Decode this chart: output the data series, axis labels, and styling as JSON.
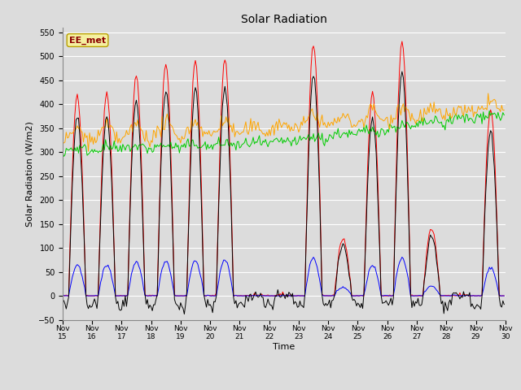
{
  "title": "Solar Radiation",
  "xlabel": "Time",
  "ylabel": "Solar Radiation (W/m2)",
  "ylim": [
    -50,
    560
  ],
  "xlim": [
    0,
    360
  ],
  "annotation_text": "EE_met",
  "annotation_bg": "#f5f0a0",
  "annotation_border": "#b8a000",
  "annotation_fg": "#8b0000",
  "bg_color": "#dcdcdc",
  "plot_bg": "#dcdcdc",
  "grid_color": "white",
  "series_colors": {
    "SW_in": "#ff0000",
    "SW_out": "#0000ff",
    "LW_in": "#00cc00",
    "LW_out": "#ffa500",
    "Rnet": "#000000"
  },
  "x_tick_labels": [
    "Nov 15",
    "Nov 16",
    "Nov 17",
    "Nov 18",
    "Nov 19",
    "Nov 20",
    "Nov 21",
    "Nov 22",
    "Nov 23",
    "Nov 24",
    "Nov 25",
    "Nov 26",
    "Nov 27",
    "Nov 28",
    "Nov 29",
    "Nov 30"
  ],
  "x_tick_positions": [
    0,
    24,
    48,
    72,
    96,
    120,
    144,
    168,
    192,
    216,
    240,
    264,
    288,
    312,
    336,
    360
  ],
  "yticks": [
    -50,
    0,
    50,
    100,
    150,
    200,
    250,
    300,
    350,
    400,
    450,
    500,
    550
  ],
  "figsize": [
    6.4,
    4.8
  ],
  "dpi": 100
}
